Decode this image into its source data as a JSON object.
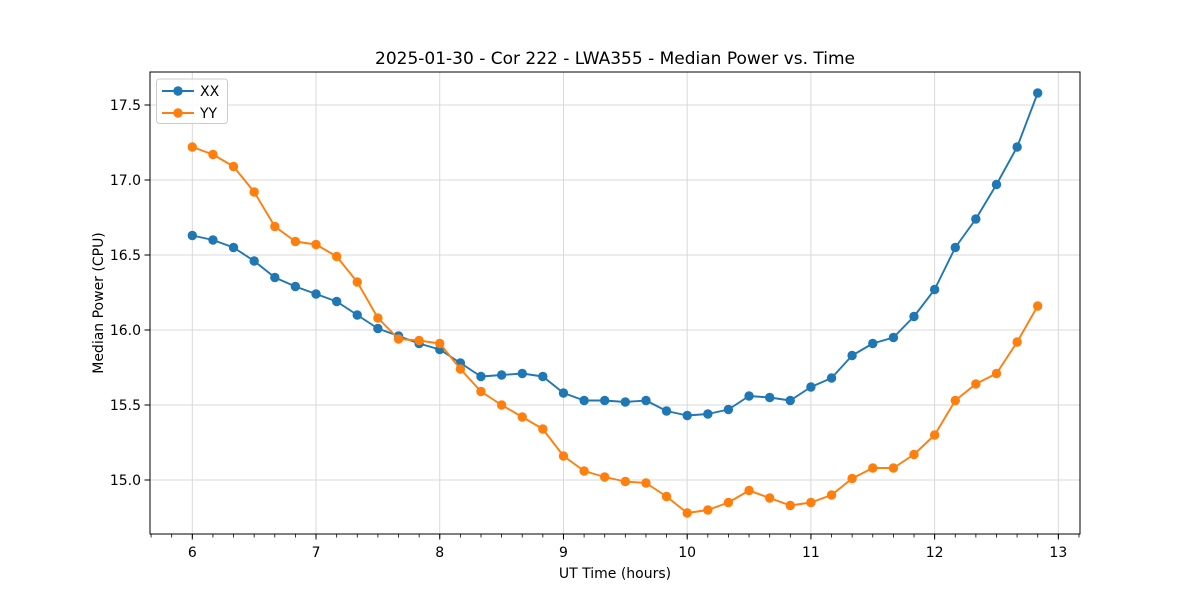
{
  "figure": {
    "background": "#ffffff"
  },
  "chart_data": {
    "type": "line",
    "title": "2025-01-30 - Cor 222 - LWA355 - Median Power vs. Time",
    "xlabel": "UT Time (hours)",
    "ylabel": "Median Power (CPU)",
    "xlim": [
      5.658,
      13.175
    ],
    "ylim": [
      14.64,
      17.72
    ],
    "x_ticks": [
      6,
      7,
      8,
      9,
      10,
      11,
      12,
      13
    ],
    "x_tick_labels": [
      "6",
      "7",
      "8",
      "9",
      "10",
      "11",
      "12",
      "13"
    ],
    "x_minor_tick_step": 0.166667,
    "y_ticks": [
      15.0,
      15.5,
      16.0,
      16.5,
      17.0,
      17.5
    ],
    "y_tick_labels": [
      "15.0",
      "15.5",
      "16.0",
      "16.5",
      "17.0",
      "17.5"
    ],
    "grid": true,
    "legend_position": "upper-left",
    "x": [
      6.0,
      6.167,
      6.333,
      6.5,
      6.667,
      6.833,
      7.0,
      7.167,
      7.333,
      7.5,
      7.667,
      7.833,
      8.0,
      8.167,
      8.333,
      8.5,
      8.667,
      8.833,
      9.0,
      9.167,
      9.333,
      9.5,
      9.667,
      9.833,
      10.0,
      10.167,
      10.333,
      10.5,
      10.667,
      10.833,
      11.0,
      11.167,
      11.333,
      11.5,
      11.667,
      11.833,
      12.0,
      12.167,
      12.333,
      12.5,
      12.667,
      12.833
    ],
    "series": [
      {
        "name": "XX",
        "color": "#1f77b4",
        "values": [
          16.63,
          16.6,
          16.55,
          16.46,
          16.35,
          16.29,
          16.24,
          16.19,
          16.1,
          16.01,
          15.96,
          15.91,
          15.87,
          15.78,
          15.69,
          15.7,
          15.71,
          15.69,
          15.58,
          15.53,
          15.53,
          15.52,
          15.53,
          15.46,
          15.43,
          15.44,
          15.47,
          15.56,
          15.55,
          15.53,
          15.62,
          15.68,
          15.83,
          15.91,
          15.95,
          16.09,
          16.27,
          16.55,
          16.74,
          16.97,
          17.22,
          17.58
        ]
      },
      {
        "name": "YY",
        "color": "#ff7f0e",
        "values": [
          17.22,
          17.17,
          17.09,
          16.92,
          16.69,
          16.59,
          16.57,
          16.49,
          16.32,
          16.08,
          15.94,
          15.93,
          15.91,
          15.74,
          15.59,
          15.5,
          15.42,
          15.34,
          15.16,
          15.06,
          15.02,
          14.99,
          14.98,
          14.89,
          14.78,
          14.8,
          14.85,
          14.93,
          14.88,
          14.83,
          14.85,
          14.9,
          15.01,
          15.08,
          15.08,
          15.17,
          15.3,
          15.53,
          15.64,
          15.71,
          15.92,
          16.16
        ]
      }
    ],
    "style": {
      "grid_color": "#d9d9d9",
      "spine_color": "#000000",
      "tick_color": "#000000",
      "legend_border_color": "#cccccc",
      "legend_background": "rgba(255,255,255,0.85)"
    }
  }
}
